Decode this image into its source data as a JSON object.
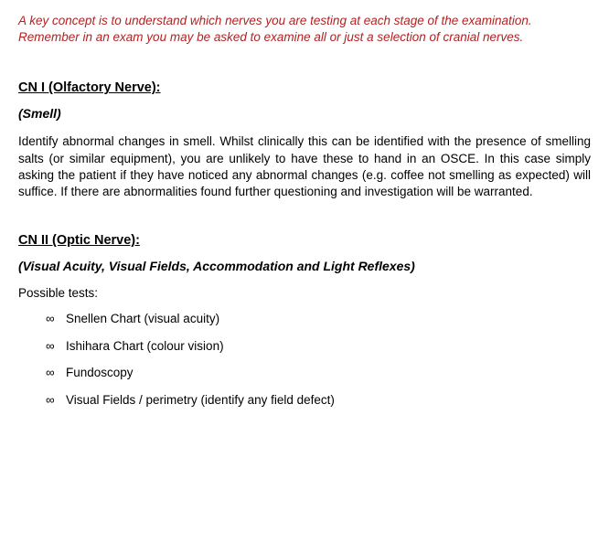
{
  "colors": {
    "intro_text": "#b22222",
    "body_text": "#000000",
    "background": "#ffffff"
  },
  "intro": {
    "text": "A key concept is to understand which nerves you are testing at each stage of the examination. Remember in an exam you may be asked to examine all or just a selection of cranial nerves."
  },
  "cn1": {
    "heading": "CN I (Olfactory Nerve): ",
    "subheading": "(Smell)",
    "body": "Identify abnormal changes in smell. Whilst clinically this can be identified with the presence of smelling salts (or similar equipment), you are unlikely to have these to hand in an OSCE. In this case simply asking the patient if they have noticed any abnormal changes (e.g. coffee not smelling as expected) will suffice. If there are abnormalities found further questioning and investigation will be warranted."
  },
  "cn2": {
    "heading": "CN II (Optic Nerve):",
    "subheading": "(Visual Acuity, Visual Fields, Accommodation and Light Reflexes)",
    "lead": "Possible tests:",
    "tests": [
      "Snellen Chart (visual acuity)",
      "Ishihara Chart (colour vision)",
      "Fundoscopy",
      "Visual Fields / perimetry (identify any field defect)"
    ]
  }
}
